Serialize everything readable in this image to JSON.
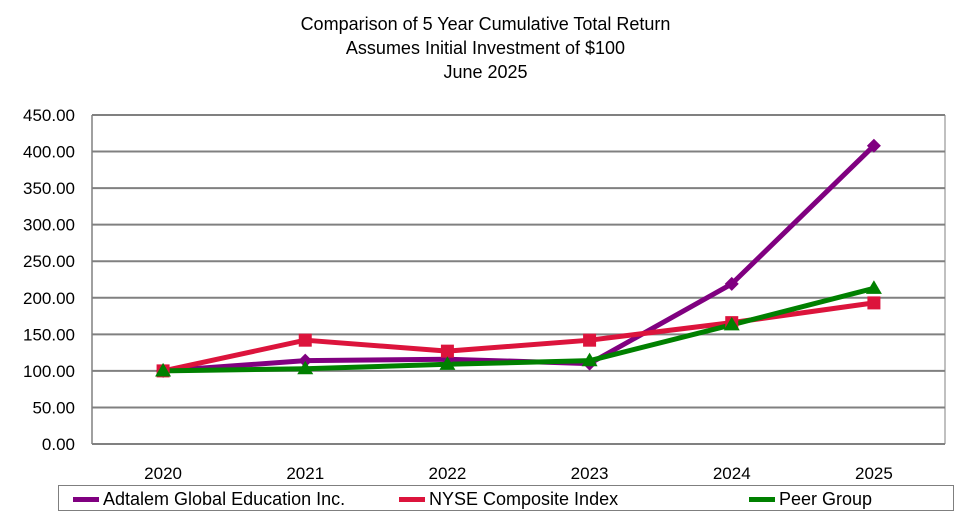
{
  "title_lines": [
    "Comparison of 5 Year Cumulative Total Return",
    "Assumes Initial Investment of $100",
    "June 2025"
  ],
  "chart_data": {
    "type": "line",
    "title": "Comparison of 5 Year Cumulative Total Return",
    "subtitle": "Assumes Initial Investment of $100 / June 2025",
    "xlabel": "",
    "ylabel": "",
    "x": [
      "2020",
      "2021",
      "2022",
      "2023",
      "2024",
      "2025"
    ],
    "ylim": [
      0,
      450
    ],
    "yticks": [
      "0.00",
      "50.00",
      "100.00",
      "150.00",
      "200.00",
      "250.00",
      "300.00",
      "350.00",
      "400.00",
      "450.00"
    ],
    "grid": true,
    "legend_position": "bottom",
    "series": [
      {
        "name": "Adtalem Global Education Inc.",
        "color": "#800080",
        "marker": "diamond",
        "values": [
          100,
          114,
          116,
          110,
          219,
          408
        ]
      },
      {
        "name": "NYSE Composite Index",
        "color": "#dc143c",
        "marker": "square",
        "values": [
          100,
          142,
          127,
          142,
          166,
          193
        ]
      },
      {
        "name": "Peer Group",
        "color": "#008000",
        "marker": "triangle",
        "values": [
          100,
          103,
          109,
          114,
          163,
          213
        ]
      }
    ]
  }
}
